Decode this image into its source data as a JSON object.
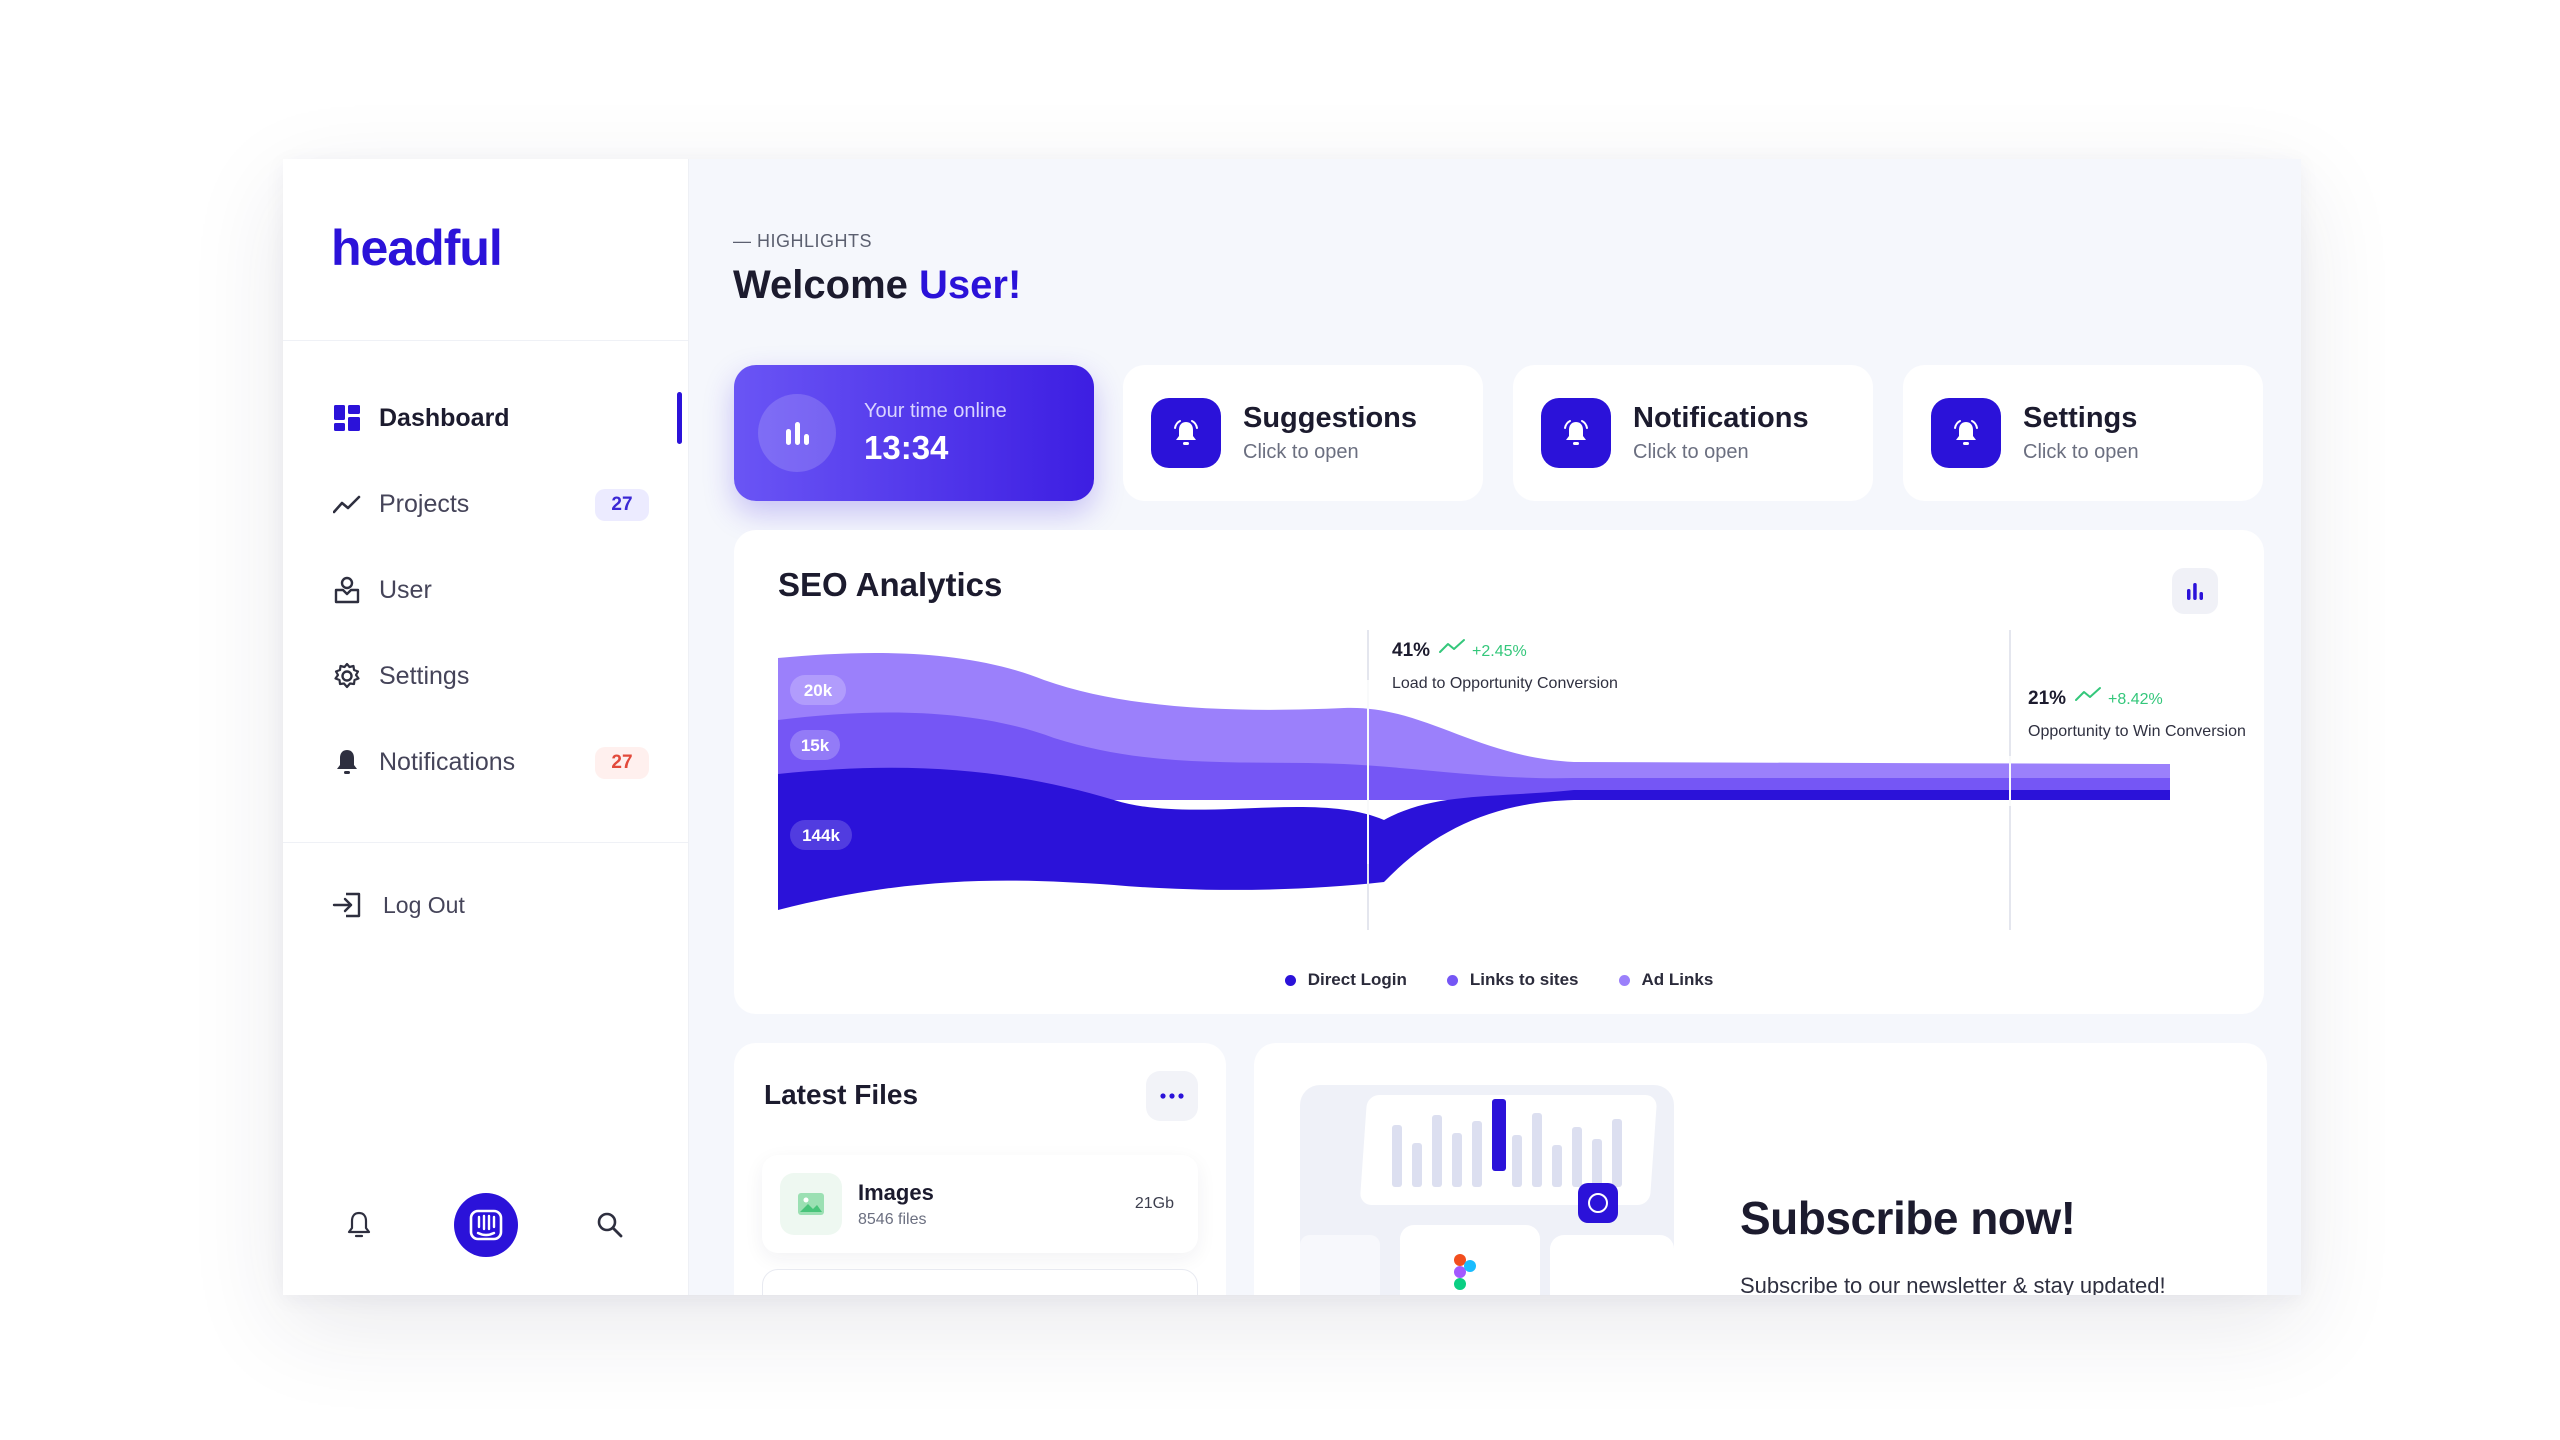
{
  "brand": {
    "logo": "headful",
    "accent": "#2b12d9"
  },
  "sidebar": {
    "items": [
      {
        "label": "Dashboard",
        "icon": "dashboard-grid-icon",
        "active": true
      },
      {
        "label": "Projects",
        "icon": "trend-line-icon",
        "badge": "27"
      },
      {
        "label": "User",
        "icon": "user-box-icon"
      },
      {
        "label": "Settings",
        "icon": "gear-icon"
      },
      {
        "label": "Notifications",
        "icon": "bell-icon",
        "badge": "27"
      }
    ],
    "logout_label": "Log Out",
    "bottom_icons": [
      "bell-icon",
      "intercom-logo-icon",
      "search-icon"
    ]
  },
  "header": {
    "eyebrow": "— HIGHLIGHTS",
    "welcome_prefix": "Welcome",
    "welcome_name": "User!"
  },
  "time_card": {
    "label": "Your time online",
    "value": "13:34",
    "icon": "bar-chart-icon"
  },
  "quick_cards": [
    {
      "title": "Suggestions",
      "subtitle": "Click to open",
      "icon": "bell-icon"
    },
    {
      "title": "Notifications",
      "subtitle": "Click to open",
      "icon": "bell-icon"
    },
    {
      "title": "Settings",
      "subtitle": "Click to open",
      "icon": "bell-icon"
    }
  ],
  "seo": {
    "title": "SEO Analytics",
    "stage_labels": [
      "20k",
      "15k",
      "144k"
    ],
    "annotations": [
      {
        "pct": "41%",
        "change": "+2.45%",
        "label": "Load to Opportunity Conversion"
      },
      {
        "pct": "21%",
        "change": "+8.42%",
        "label": "Opportunity to Win Conversion"
      }
    ],
    "legend": [
      {
        "name": "Direct Login",
        "color": "#2b12d9"
      },
      {
        "name": "Links to sites",
        "color": "#7556f5"
      },
      {
        "name": "Ad Links",
        "color": "#9b80fb"
      }
    ]
  },
  "files": {
    "title": "Latest Files",
    "items": [
      {
        "name": "Images",
        "count": "8546 files",
        "size": "21Gb",
        "icon": "image-icon"
      }
    ]
  },
  "subscribe": {
    "title": "Subscribe now!",
    "text": "Subscribe to our newsletter & stay updated!"
  }
}
